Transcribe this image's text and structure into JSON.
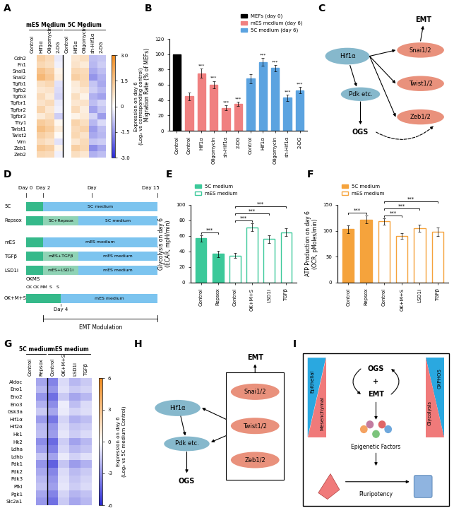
{
  "chart_data": [
    {
      "panel": "A",
      "type": "heatmap",
      "rows": [
        "Cdh2",
        "Fn1",
        "Snai1",
        "Snai2",
        "Tgfb1",
        "Tgfb2",
        "Tgfb3",
        "Tgfbr1",
        "Tgfbr2",
        "Tgfbr3",
        "Thy1",
        "Twist1",
        "Twist2",
        "Vim",
        "Zeb1",
        "Zeb2"
      ],
      "column_groups": [
        {
          "label": "mES Medium",
          "columns": [
            "Control",
            "Hif1α",
            "Oligomycin",
            "2-DG"
          ]
        },
        {
          "label": "5C Medium",
          "columns": [
            "Control",
            "Hif1α",
            "Oligomycin",
            "sh-Hif1α",
            "2-DG"
          ]
        }
      ],
      "cells": [
        [
          0,
          1.2,
          0.9,
          -0.3,
          0,
          0.6,
          0.8,
          -0.9,
          -0.8
        ],
        [
          0,
          1.0,
          0.8,
          -0.2,
          0,
          0.7,
          0.5,
          -1.0,
          -0.7
        ],
        [
          0,
          1.5,
          1.2,
          0.3,
          0,
          1.0,
          0.9,
          -1.2,
          -0.9
        ],
        [
          0,
          1.8,
          1.4,
          0.4,
          0,
          1.2,
          1.0,
          -1.5,
          -1.1
        ],
        [
          0,
          0.8,
          1.0,
          -0.4,
          0,
          0.5,
          0.9,
          -0.8,
          -1.2
        ],
        [
          0,
          0.6,
          0.7,
          -0.5,
          0,
          0.4,
          0.6,
          -0.7,
          -1.0
        ],
        [
          0,
          0.9,
          0.5,
          -0.6,
          0,
          0.8,
          0.3,
          -1.1,
          -1.3
        ],
        [
          0,
          0.7,
          0.9,
          -0.3,
          0,
          0.6,
          0.7,
          -0.9,
          -0.6
        ],
        [
          0,
          1.1,
          0.6,
          -0.2,
          0,
          0.9,
          0.4,
          -1.3,
          -0.8
        ],
        [
          0,
          0.5,
          0.8,
          -0.7,
          0,
          0.3,
          0.5,
          -0.6,
          -1.4
        ],
        [
          0,
          1.3,
          1.1,
          0.2,
          0,
          1.1,
          0.8,
          -1.0,
          -0.5
        ],
        [
          0,
          1.6,
          1.3,
          0.5,
          0,
          0.9,
          1.1,
          -1.4,
          -0.9
        ],
        [
          0,
          1.2,
          1.0,
          0.1,
          0,
          1.0,
          0.7,
          -1.2,
          -1.0
        ],
        [
          0,
          0.9,
          0.7,
          -0.4,
          0,
          0.6,
          0.9,
          -0.8,
          -0.7
        ],
        [
          0,
          1.4,
          1.2,
          0.3,
          0,
          1.2,
          1.0,
          -1.6,
          -1.2
        ],
        [
          0,
          1.0,
          0.9,
          -0.2,
          0,
          0.8,
          0.6,
          -1.1,
          -0.9
        ]
      ],
      "colorbar": {
        "label": "Expression on day 6\n(Log₂ vs corresponding control)",
        "range": [
          -3,
          3
        ],
        "ticks": [
          {
            "value": -3,
            "label": "-3.0"
          },
          {
            "value": -1.5,
            "label": "-1.5"
          },
          0,
          {
            "value": 1.5,
            "label": "1.5"
          },
          {
            "value": 3,
            "label": "3.0"
          }
        ]
      }
    },
    {
      "panel": "B",
      "type": "bar",
      "categories": [
        "Control",
        "Control",
        "Hif1α",
        "Oligomycin",
        "sh-Hif1α",
        "2-DG",
        "Control",
        "Hif1α",
        "Oligomycin",
        "sh-Hif1α",
        "2-DG"
      ],
      "ylabel": "Migration Rate (% of MEFs)",
      "ylim": [
        0,
        120
      ],
      "yticks": [
        0,
        20,
        40,
        60,
        80,
        100,
        120
      ],
      "legend": "upper right",
      "series": [
        {
          "name": "MEFs (day 0)",
          "color": "#000000",
          "values": [
            100,
            null,
            null,
            null,
            null,
            null,
            null,
            null,
            null,
            null,
            null
          ],
          "errors": [
            null,
            null,
            null,
            null,
            null,
            null,
            null,
            null,
            null,
            null,
            null
          ]
        },
        {
          "name": "mES medium (day 6)",
          "color": "#f08080",
          "values": [
            null,
            45,
            75,
            60,
            30,
            35,
            null,
            null,
            null,
            null,
            null
          ],
          "errors": [
            null,
            5,
            6,
            5,
            3,
            3,
            null,
            null,
            null,
            null,
            null
          ]
        },
        {
          "name": "5C medium (day 6)",
          "color": "#5ba3e0",
          "values": [
            null,
            null,
            null,
            null,
            null,
            null,
            68,
            90,
            82,
            43,
            53
          ],
          "errors": [
            null,
            null,
            null,
            null,
            null,
            null,
            6,
            5,
            4,
            4,
            4
          ]
        }
      ],
      "annotations": [
        null,
        null,
        "***",
        "***",
        "***",
        "***",
        null,
        "***",
        "***",
        "***",
        "***"
      ]
    },
    {
      "panel": "E",
      "type": "bar",
      "categories": [
        "Control",
        "Repsox",
        "Control",
        "OK+M+S",
        "LSD1i",
        "TGFβ"
      ],
      "ylabel": "Glycolysis on day 6\n(ECAR, mpH/min)",
      "ylim": [
        0,
        100
      ],
      "yticks": [
        0,
        20,
        40,
        60,
        80,
        100
      ],
      "legend": "upper left",
      "series": [
        {
          "name": "5C medium",
          "color": "#3cc99a",
          "values": [
            57,
            37,
            null,
            null,
            null,
            null
          ],
          "errors": [
            4,
            4,
            null,
            null,
            null,
            null
          ]
        },
        {
          "name": "mES medium",
          "color": "#3cc99a",
          "values": [
            null,
            null,
            35,
            71,
            56,
            65
          ],
          "errors": [
            null,
            null,
            3,
            5,
            5,
            5
          ]
        }
      ],
      "comparisons": [
        [
          0,
          1
        ],
        [
          2,
          3
        ],
        [
          2,
          4
        ],
        [
          2,
          5
        ]
      ],
      "comparison_label": "***"
    },
    {
      "panel": "F",
      "type": "bar",
      "categories": [
        "Control",
        "Repsox",
        "Control",
        "OK+M+S",
        "LSD1i",
        "TGFβ"
      ],
      "ylabel": "ATP Production on day 6\n(OCR, pMoles/min)",
      "ylim": [
        0,
        150
      ],
      "yticks": [
        0,
        50,
        100,
        150
      ],
      "legend": "upper left",
      "series": [
        {
          "name": "5C medium",
          "color": "#f5a33c",
          "values": [
            103,
            122,
            null,
            null,
            null,
            null
          ],
          "errors": [
            8,
            7,
            null,
            null,
            null,
            null
          ]
        },
        {
          "name": "mES medium",
          "color": "#f5a33c",
          "values": [
            null,
            null,
            118,
            90,
            105,
            98
          ],
          "errors": [
            null,
            null,
            6,
            5,
            7,
            8
          ]
        }
      ],
      "comparisons": [
        [
          0,
          1
        ],
        [
          2,
          3
        ],
        [
          2,
          4
        ],
        [
          2,
          5
        ]
      ],
      "comparison_label": "***"
    },
    {
      "panel": "G",
      "type": "heatmap",
      "rows": [
        "Aldoc",
        "Eno1",
        "Eno2",
        "Eno3",
        "Gsk3a",
        "Hif1α",
        "Hif2α",
        "Hk1",
        "Hk2",
        "Ldha",
        "Ldhb",
        "Pdk1",
        "Pdk2",
        "Pdk3",
        "Pfkl",
        "Pgk1",
        "Slc2a1"
      ],
      "column_groups": [
        {
          "label": "5C medium",
          "columns": [
            "Control",
            "Repsox"
          ]
        },
        {
          "label": "mES medium",
          "columns": [
            "Control",
            "OK+M+S",
            "LSD1i",
            "TGFβ"
          ]
        }
      ],
      "cells": [
        [
          0,
          -2.5,
          -3.5,
          -1.0,
          -2.0,
          -1.5
        ],
        [
          0,
          -2.0,
          -3.0,
          -0.8,
          -1.5,
          -1.2
        ],
        [
          0,
          -3.0,
          -4.0,
          -1.5,
          -2.5,
          -2.0
        ],
        [
          0,
          -2.2,
          -3.2,
          -0.5,
          -1.8,
          -1.0
        ],
        [
          0,
          -1.5,
          -2.5,
          -0.6,
          -1.2,
          -0.9
        ],
        [
          0,
          -2.8,
          -3.8,
          -1.2,
          -2.2,
          -1.8
        ],
        [
          0,
          -2.0,
          -3.0,
          -0.9,
          -1.6,
          -1.4
        ],
        [
          0,
          -1.8,
          -2.8,
          -0.7,
          -1.4,
          -1.0
        ],
        [
          0,
          -3.2,
          -4.2,
          -1.4,
          -2.6,
          -2.0
        ],
        [
          0,
          -2.6,
          -3.6,
          -1.1,
          -2.0,
          -1.6
        ],
        [
          0,
          -1.6,
          -2.6,
          -0.6,
          -1.3,
          -0.8
        ],
        [
          0,
          -3.0,
          -4.5,
          -1.6,
          -2.8,
          -2.2
        ],
        [
          0,
          -2.4,
          -3.4,
          -1.0,
          -1.9,
          -1.5
        ],
        [
          0,
          -2.0,
          -3.0,
          -0.8,
          -1.6,
          -1.2
        ],
        [
          0,
          -1.7,
          -2.7,
          -0.7,
          -1.4,
          -1.0
        ],
        [
          0,
          -2.5,
          -3.5,
          -1.2,
          -2.1,
          -1.7
        ],
        [
          0,
          -2.9,
          -4.0,
          -1.5,
          -2.5,
          -2.0
        ]
      ],
      "colorbar": {
        "label": "Expression on day 6\n(Log₂ vs 5C medium Control)",
        "range": [
          -6,
          6
        ],
        "ticks": [
          -6,
          -3,
          0,
          3,
          6
        ]
      }
    }
  ],
  "diagrams": {
    "C": {
      "panel": "C",
      "hif": "Hif1α",
      "pdk": "Pdk etc.",
      "ogs": "OGS",
      "emt": "EMT",
      "tfs": [
        "Snai1/2",
        "Twist1/2",
        "Zeb1/2"
      ]
    },
    "D": {
      "panel": "D",
      "days": [
        "Day 0",
        "Day 2",
        "Day",
        "Day 15"
      ],
      "rows": [
        {
          "label": "5C",
          "segments": [
            null,
            "5C medium"
          ]
        },
        {
          "label": "Repsox",
          "segments": [
            null,
            "5C+Repsox",
            "5C medium"
          ]
        },
        {
          "label": "mES",
          "segments": [
            null,
            "mES medium"
          ]
        },
        {
          "label": "TGFβ",
          "segments": [
            null,
            "mES+TGFβ",
            "mES medium"
          ]
        },
        {
          "label": "LSD1i",
          "segments": [
            null,
            "mES+LSD1i",
            "mES medium"
          ]
        },
        {
          "label": "OK+M+S",
          "segments": [
            null,
            "mES medium"
          ],
          "switch": "Day 4",
          "factors": [
            "OK",
            "OK",
            "MM",
            "S",
            "S"
          ]
        }
      ],
      "note": "OKMS",
      "modulation": "EMT Modulation"
    },
    "H": {
      "panel": "H",
      "emt": "EMT",
      "tfs": [
        "Snai1/2",
        "Twist1/2",
        "Zeb1/2"
      ],
      "hif": "Hif1α",
      "pdk": "Pdk etc.",
      "ogs": "OGS"
    },
    "I": {
      "panel": "I",
      "epithelial": "Epithelial",
      "mesenchymal": "Mesenchymal",
      "oxphos": "OXPHOS",
      "glycolysis": "Glycolysis",
      "ogs": "OGS",
      "plus": "+",
      "emt": "EMT",
      "epigenetic": "Epigenetic Factors",
      "pluripotency": "Pluripotency"
    }
  }
}
